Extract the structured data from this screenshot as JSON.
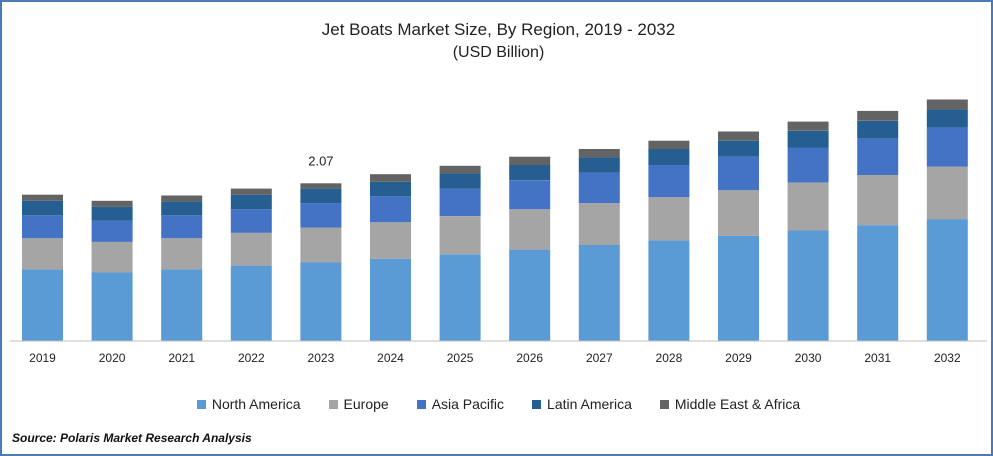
{
  "colors": {
    "frame_border": "#4a7bb7",
    "axis": "#bfbfbf",
    "text": "#222222"
  },
  "chart_data": {
    "type": "bar",
    "stacked": true,
    "title": "Jet Boats Market Size, By Region, 2019 - 2032",
    "subtitle": "(USD Billion)",
    "categories": [
      "2019",
      "2020",
      "2021",
      "2022",
      "2023",
      "2024",
      "2025",
      "2026",
      "2027",
      "2028",
      "2029",
      "2030",
      "2031",
      "2032"
    ],
    "series": [
      {
        "name": "North America",
        "color": "#5b9bd5",
        "values": [
          0.94,
          0.9,
          0.94,
          0.99,
          1.03,
          1.08,
          1.14,
          1.2,
          1.26,
          1.32,
          1.38,
          1.45,
          1.52,
          1.6
        ]
      },
      {
        "name": "Europe",
        "color": "#a5a5a5",
        "values": [
          0.41,
          0.4,
          0.41,
          0.43,
          0.46,
          0.48,
          0.5,
          0.53,
          0.55,
          0.57,
          0.6,
          0.63,
          0.66,
          0.69
        ]
      },
      {
        "name": "Asia Pacific",
        "color": "#4472c4",
        "values": [
          0.3,
          0.28,
          0.3,
          0.31,
          0.32,
          0.34,
          0.36,
          0.38,
          0.4,
          0.42,
          0.44,
          0.46,
          0.48,
          0.51
        ]
      },
      {
        "name": "Latin America",
        "color": "#255e91",
        "values": [
          0.19,
          0.18,
          0.18,
          0.19,
          0.19,
          0.19,
          0.2,
          0.2,
          0.2,
          0.21,
          0.21,
          0.22,
          0.23,
          0.24
        ]
      },
      {
        "name": "Middle East & Africa",
        "color": "#636363",
        "values": [
          0.08,
          0.08,
          0.08,
          0.08,
          0.07,
          0.1,
          0.1,
          0.11,
          0.11,
          0.11,
          0.12,
          0.12,
          0.13,
          0.13
        ]
      }
    ],
    "annotations": [
      {
        "category": "2023",
        "text": "2.07"
      }
    ],
    "ylim": [
      0,
      3.4
    ],
    "grid": false,
    "legend_position": "bottom"
  },
  "source": "Source: Polaris Market Research Analysis"
}
